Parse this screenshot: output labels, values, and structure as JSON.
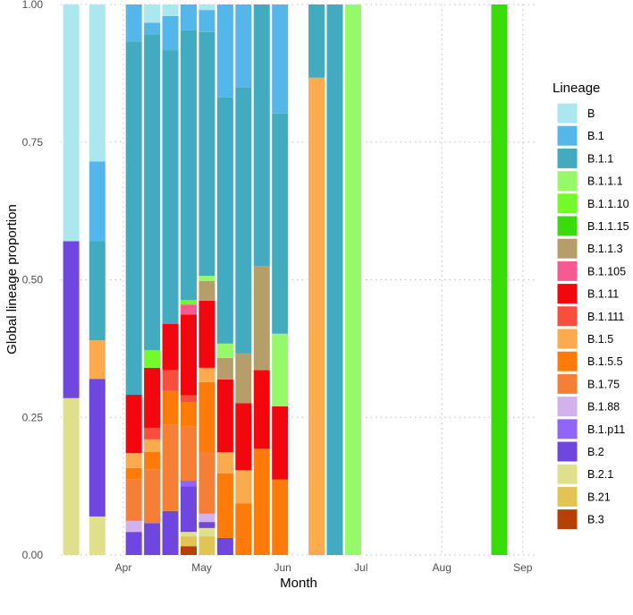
{
  "chart_data": {
    "type": "bar",
    "stacked": true,
    "xlabel": "Month",
    "ylabel": "Global lineage proportion",
    "ylim": [
      0,
      1
    ],
    "yticks": [
      "0.00",
      "0.25",
      "0.50",
      "0.75",
      "1.00"
    ],
    "ytick_values": [
      0,
      0.25,
      0.5,
      0.75,
      1
    ],
    "xticks": [
      {
        "label": "Apr",
        "date": "04-01"
      },
      {
        "label": "May",
        "date": "05-01"
      },
      {
        "label": "Jun",
        "date": "06-01"
      },
      {
        "label": "Jul",
        "date": "07-01"
      },
      {
        "label": "Aug",
        "date": "08-01"
      },
      {
        "label": "Sep",
        "date": "09-01"
      }
    ],
    "grid": true,
    "legend": {
      "title": "Lineage",
      "placement": "right",
      "entries": [
        {
          "name": "B",
          "color": "#ABE7EE"
        },
        {
          "name": "B.1",
          "color": "#55B6E9"
        },
        {
          "name": "B.1.1",
          "color": "#42ABBF"
        },
        {
          "name": "B.1.1.1",
          "color": "#96F96A"
        },
        {
          "name": "B.1.1.10",
          "color": "#72FA2A"
        },
        {
          "name": "B.1.1.15",
          "color": "#3ADB0A"
        },
        {
          "name": "B.1.1.3",
          "color": "#B59E6A"
        },
        {
          "name": "B.1.105",
          "color": "#F75A91"
        },
        {
          "name": "B.1.11",
          "color": "#F2070F"
        },
        {
          "name": "B.1.111",
          "color": "#F94D3E"
        },
        {
          "name": "B.1.5",
          "color": "#FCAA4E"
        },
        {
          "name": "B.1.5.5",
          "color": "#FE7B0A"
        },
        {
          "name": "B.1.75",
          "color": "#F57F35"
        },
        {
          "name": "B.1.88",
          "color": "#D2B1EE"
        },
        {
          "name": "B.1.p11",
          "color": "#9165F7"
        },
        {
          "name": "B.2",
          "color": "#7047DE"
        },
        {
          "name": "B.2.1",
          "color": "#DEE08C"
        },
        {
          "name": "B.21",
          "color": "#E1C454"
        },
        {
          "name": "B.3",
          "color": "#B54107"
        }
      ]
    },
    "bars": [
      {
        "date": "03-12",
        "values": {
          "B.2.1": 0.285,
          "B.2": 0.285,
          "B": 0.43
        }
      },
      {
        "date": "03-22",
        "values": {
          "B.2.1": 0.07,
          "B.2": 0.25,
          "B.1.5": 0.07,
          "B.1.1": 0.18,
          "B.1": 0.145,
          "B": 0.285
        }
      },
      {
        "date": "04-05",
        "values": {
          "B.2": 0.042,
          "B.1.88": 0.02,
          "B.1.75": 0.075,
          "B.1.5.5": 0.021,
          "B.1.5": 0.027,
          "B.1.11": 0.106,
          "B.1.1": 0.642,
          "B.1": 0.067
        }
      },
      {
        "date": "04-12",
        "values": {
          "B.2": 0.058,
          "B.1.75": 0.097,
          "B.1.5.5": 0.032,
          "B.1.5": 0.023,
          "B.1.111": 0.021,
          "B.1.11": 0.109,
          "B.1.1.10": 0.032,
          "B.1.1": 0.574,
          "B.1": 0.021,
          "B": 0.033
        }
      },
      {
        "date": "04-19",
        "values": {
          "B.2": 0.08,
          "B.1.75": 0.157,
          "B.1.5.5": 0.061,
          "B.1.111": 0.038,
          "B.1.11": 0.084,
          "B.1.1": 0.497,
          "B.1": 0.062,
          "B": 0.021
        }
      },
      {
        "date": "04-26",
        "values": {
          "B.3": 0.016,
          "B.21": 0.018,
          "B.2.1": 0.008,
          "B.2": 0.083,
          "B.1.p11": 0.01,
          "B.1.75": 0.098,
          "B.1.5.5": 0.045,
          "B.1.111": 0.012,
          "B.1.11": 0.147,
          "B.1.105": 0.018,
          "B.1.1.10": 0.008,
          "B.1.1": 0.49,
          "B.1": 0.047
        }
      },
      {
        "date": "05-03",
        "values": {
          "B.21": 0.034,
          "B.2.1": 0.015,
          "B.2": 0.011,
          "B.1.88": 0.015,
          "B.1.75": 0.112,
          "B.1.5.5": 0.127,
          "B.1.5": 0.026,
          "B.1.11": 0.122,
          "B.1.1.3": 0.036,
          "B.1.1.1": 0.009,
          "B.1.1": 0.443,
          "B.1": 0.04,
          "B": 0.01
        }
      },
      {
        "date": "05-10",
        "values": {
          "B.2": 0.031,
          "B.1.5.5": 0.117,
          "B.1.5": 0.039,
          "B.1.11": 0.132,
          "B.1.1.3": 0.039,
          "B.1.1.1": 0.026,
          "B.1.1": 0.447,
          "B.1": 0.169
        }
      },
      {
        "date": "05-17",
        "values": {
          "B.1.5.5": 0.094,
          "B.1.5": 0.06,
          "B.1.11": 0.122,
          "B.1.1.3": 0.09,
          "B.1.1": 0.484,
          "B.1": 0.15
        }
      },
      {
        "date": "05-24",
        "values": {
          "B.1.5.5": 0.193,
          "B.1.11": 0.143,
          "B.1.1.3": 0.189,
          "B.1.1": 0.475
        }
      },
      {
        "date": "05-31",
        "values": {
          "B.1.5.5": 0.137,
          "B.1.11": 0.133,
          "B.1.1.1": 0.132,
          "B.1.1": 0.4,
          "B.1": 0.198
        }
      },
      {
        "date": "06-14",
        "values": {
          "B.1.5": 0.867,
          "B.1.1": 0.133
        }
      },
      {
        "date": "06-21",
        "values": {
          "B.1.1": 1.0
        }
      },
      {
        "date": "06-28",
        "values": {
          "B.1.1.1": 1.0
        }
      },
      {
        "date": "08-23",
        "values": {
          "B.1.1.15": 1.0
        }
      }
    ]
  }
}
